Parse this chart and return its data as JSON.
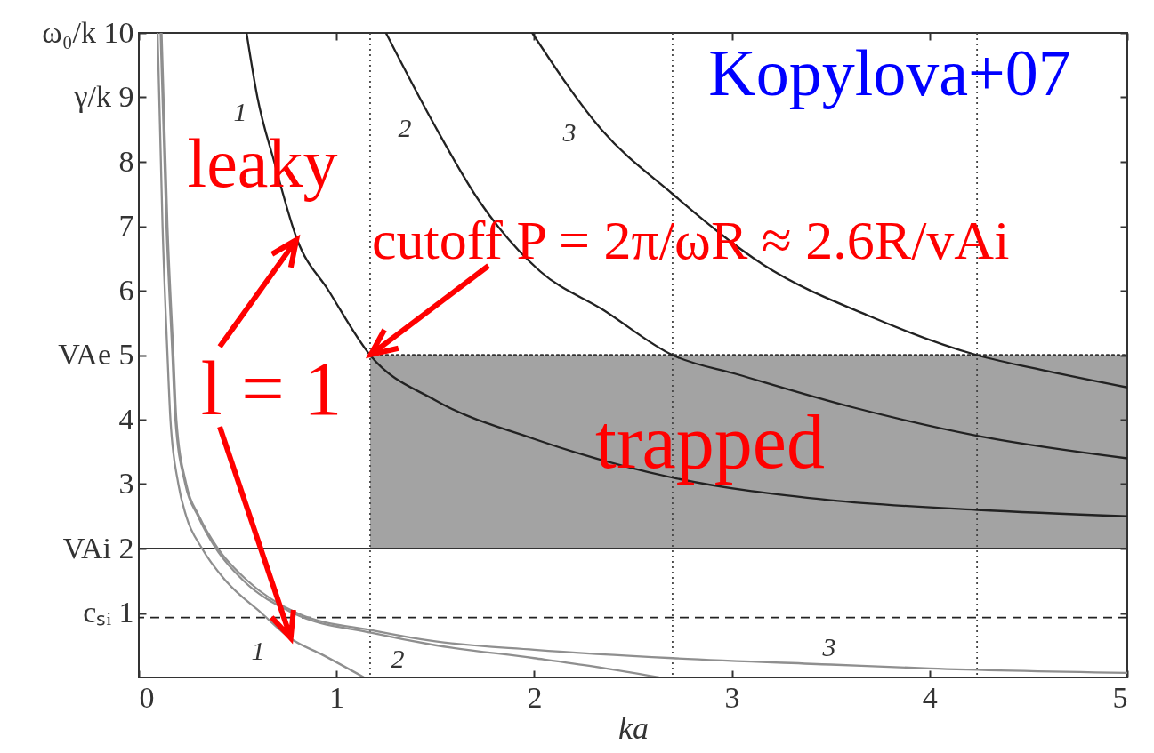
{
  "chart_data": {
    "type": "line",
    "xlabel": "ka",
    "xlim": [
      0,
      5
    ],
    "xticks": [
      0,
      1,
      2,
      3,
      4,
      5
    ],
    "ylim": [
      0,
      10
    ],
    "yticks": [
      {
        "value": 1,
        "label": "cₛᵢ 1"
      },
      {
        "value": 2,
        "label": "VAi 2"
      },
      3,
      4,
      {
        "value": 5,
        "label": "VAe 5"
      },
      6,
      7,
      8,
      {
        "value": 9,
        "label": "γ/k 9"
      },
      {
        "value": 10,
        "label": "ω₀/k 10"
      }
    ],
    "series": [
      {
        "type": "line",
        "line_style": "dotted",
        "color": "#333333",
        "x": [
          1.17,
          5
        ],
        "values": [
          5,
          5
        ],
        "lower": [
          2,
          2
        ],
        "upper": [
          5,
          5
        ]
      },
      {
        "name": "1",
        "color": "#222222",
        "x": [
          0.545,
          0.6,
          0.685,
          0.8,
          0.96,
          1.17,
          1.5,
          2.0,
          2.7,
          3.5,
          4.24,
          5
        ],
        "values": [
          10,
          9,
          8,
          6.8,
          6,
          5,
          4.3,
          3.7,
          3.1,
          2.75,
          2.6,
          2.5
        ]
      },
      {
        "name": "2",
        "color": "#222222",
        "x": [
          1.25,
          1.49,
          1.72,
          2.03,
          2.35,
          2.7,
          3.03,
          3.6,
          4.24,
          5
        ],
        "values": [
          10,
          8.6,
          7.4,
          6.3,
          5.7,
          5,
          4.7,
          4.2,
          3.75,
          3.4
        ]
      },
      {
        "name": "3",
        "color": "#222222",
        "x": [
          1.99,
          2.34,
          2.7,
          3.16,
          3.7,
          4.24,
          4.6,
          5
        ],
        "values": [
          10,
          8.5,
          7.5,
          6.4,
          5.6,
          5,
          4.75,
          4.5
        ]
      },
      {
        "name": "1",
        "color": "#8f8f8f",
        "x": [
          0.095,
          0.12,
          0.145,
          0.16,
          0.2,
          0.24,
          0.32,
          0.44,
          0.62,
          0.77,
          0.93,
          1.14
        ],
        "values": [
          10,
          7,
          5,
          4,
          3,
          2.5,
          2,
          1.5,
          1,
          0.6,
          0.35,
          0
        ]
      },
      {
        "name": "2",
        "color": "#8f8f8f",
        "x": [
          0.11,
          0.14,
          0.17,
          0.185,
          0.235,
          0.3,
          0.39,
          0.53,
          0.78,
          1.18,
          1.5,
          2.0,
          2.3,
          2.63
        ],
        "values": [
          10,
          7,
          5,
          4,
          3,
          2.5,
          2,
          1.5,
          1,
          0.69,
          0.5,
          0.3,
          0.17,
          0
        ]
      },
      {
        "name": "3",
        "color": "#8f8f8f",
        "x": [
          0.115,
          0.145,
          0.175,
          0.19,
          0.24,
          0.305,
          0.4,
          0.55,
          0.8,
          1.2,
          1.5,
          2.0,
          2.7,
          3.5,
          4.0,
          5
        ],
        "values": [
          10,
          7,
          5,
          4,
          3,
          2.5,
          2,
          1.5,
          1,
          0.72,
          0.56,
          0.43,
          0.3,
          0.2,
          0.14,
          0.07
        ]
      }
    ],
    "ref_lines": [
      {
        "axis": "y",
        "value": 2,
        "color": "#333333",
        "line_style": "solid"
      },
      {
        "axis": "y",
        "value": 0.93,
        "color": "#222222",
        "line_style": "dashed"
      },
      {
        "axis": "x",
        "value": 1.17,
        "color": "#444444",
        "line_style": "dotted"
      },
      {
        "axis": "x",
        "value": 2.7,
        "color": "#444444",
        "line_style": "dotted"
      },
      {
        "axis": "x",
        "value": 4.24,
        "color": "#444444",
        "line_style": "dotted"
      }
    ],
    "annotations": [
      "Kopylova+07",
      "leaky",
      {
        "text": "cutoff P = 2π/ωR ≈ 2.6R/vAi",
        "x": 1.17,
        "y": 5
      },
      {
        "text": "l = 1",
        "x": 0.8,
        "y": 6.8
      },
      "trapped"
    ]
  }
}
